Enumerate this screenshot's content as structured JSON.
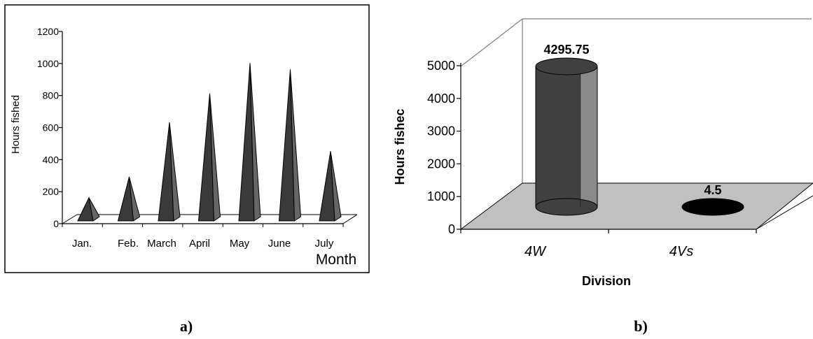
{
  "chart_data": [
    {
      "type": "bar",
      "style": "3d-cone",
      "panel_label": "a)",
      "categories": [
        "Jan.",
        "Feb.",
        "March",
        "April",
        "May",
        "June",
        "July"
      ],
      "values": [
        180,
        310,
        650,
        830,
        1020,
        980,
        470
      ],
      "xlabel": "Month",
      "ylabel": "Hours fished",
      "ylim": [
        0,
        1200
      ],
      "yticks": [
        "0",
        "200",
        "400",
        "600",
        "800",
        "1000",
        "1200"
      ],
      "grid": false,
      "bar_color": "#3a3a3a"
    },
    {
      "type": "bar",
      "style": "3d-cylinder",
      "panel_label": "b)",
      "categories": [
        "4W",
        "4Vs"
      ],
      "values": [
        4295.75,
        4.5
      ],
      "data_labels": [
        "4295.75",
        "4.5"
      ],
      "xlabel": "Division",
      "ylabel": "Hours fishec",
      "ylim": [
        0,
        5000
      ],
      "yticks": [
        "0",
        "1000",
        "2000",
        "3000",
        "4000",
        "5000"
      ],
      "grid": false,
      "floor_color": "#c0c0c0",
      "bar_colors": [
        "#404040",
        "#000000"
      ]
    }
  ]
}
